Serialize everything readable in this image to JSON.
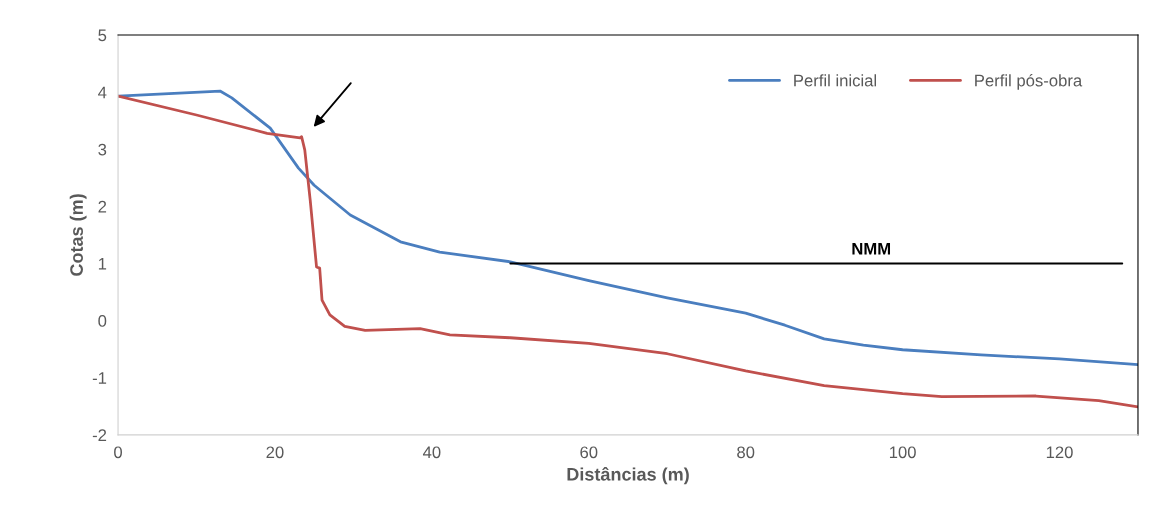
{
  "chart_data": {
    "type": "line",
    "xlabel": "Distâncias (m)",
    "ylabel": "Cotas (m)",
    "xlim": [
      0,
      130
    ],
    "xticks": [
      0,
      20,
      40,
      60,
      80,
      100,
      120
    ],
    "ylim": [
      -2,
      5
    ],
    "yticks": [
      -2,
      -1,
      0,
      1,
      2,
      3,
      4,
      5
    ],
    "grid": false,
    "legend": "top right",
    "marker": "none",
    "line_style": "solid",
    "series": [
      {
        "name": "Perfil inicial",
        "color": "#4a7ebf",
        "x": [
          0,
          13,
          14.5,
          19.4,
          23,
          25,
          29.6,
          36,
          41,
          50,
          60,
          70,
          80,
          85,
          90,
          95,
          100,
          110,
          120,
          130
        ],
        "values": [
          3.93,
          4.02,
          3.9,
          3.37,
          2.67,
          2.37,
          1.85,
          1.38,
          1.2,
          1.03,
          0.7,
          0.4,
          0.13,
          -0.08,
          -0.32,
          -0.43,
          -0.51,
          -0.6,
          -0.67,
          -0.77
        ]
      },
      {
        "name": "Perfil pós-obra",
        "color": "#c0504d",
        "x": [
          0,
          10,
          19,
          23.2,
          23.4,
          23.8,
          24.5,
          25.3,
          25.7,
          26,
          27,
          28.9,
          31.5,
          38.5,
          42.3,
          50,
          60,
          70,
          80,
          90,
          100,
          105,
          117,
          125,
          130
        ],
        "values": [
          3.93,
          3.6,
          3.28,
          3.2,
          3.22,
          2.99,
          2.1,
          0.94,
          0.92,
          0.36,
          0.1,
          -0.1,
          -0.17,
          -0.14,
          -0.25,
          -0.3,
          -0.4,
          -0.58,
          -0.88,
          -1.14,
          -1.28,
          -1.33,
          -1.32,
          -1.4,
          -1.51
        ]
      },
      {
        "color": "#000000",
        "x": [
          50,
          128
        ],
        "values": [
          1,
          1
        ]
      }
    ],
    "annotations": [
      {
        "text": "NMM",
        "x": 96,
        "y": 1.0
      }
    ]
  }
}
